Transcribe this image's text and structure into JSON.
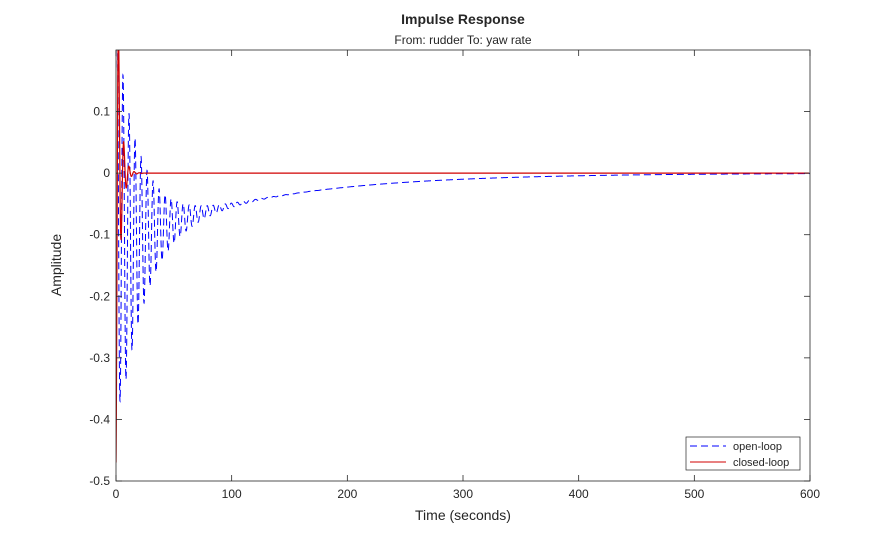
{
  "chart_data": {
    "type": "line",
    "title": "Impulse Response",
    "subtitle": "From: rudder  To: yaw rate",
    "xlabel": "Time (seconds)",
    "ylabel": "Amplitude",
    "xlim": [
      0,
      600
    ],
    "ylim": [
      -0.5,
      0.2
    ],
    "xticks": [
      0,
      100,
      200,
      300,
      400,
      500,
      600
    ],
    "xtick_labels": [
      "0",
      "100",
      "200",
      "300",
      "400",
      "500",
      "600"
    ],
    "yticks": [
      0.1,
      0,
      -0.1,
      -0.2,
      -0.3,
      -0.4,
      -0.5
    ],
    "ytick_labels": [
      "0.1",
      "0",
      "-0.1",
      "-0.2",
      "-0.3",
      "-0.4",
      "-0.5"
    ],
    "grid": false,
    "legend_location": "bottom-right",
    "series": [
      {
        "name": "open-loop",
        "color": "#0000ff",
        "style": "dashed",
        "model": "decaying oscillation plus slow negative drift",
        "params": {
          "osc_amp": 0.34,
          "osc_tau": 22,
          "osc_period": 5.2,
          "drift_amp": -0.12,
          "drift_tau": 120
        },
        "peaks": [
          {
            "t": 2,
            "y": 0.19
          },
          {
            "t": 4.6,
            "y": -0.38
          },
          {
            "t": 50,
            "y": -0.05
          },
          {
            "t": 200,
            "y": -0.021
          },
          {
            "t": 400,
            "y": -0.004
          },
          {
            "t": 600,
            "y": 0
          }
        ]
      },
      {
        "name": "closed-loop",
        "color": "#d00000",
        "style": "solid",
        "model": "fast damped oscillation",
        "params": {
          "start": -0.47,
          "osc_amp": 0.5,
          "osc_tau": 3,
          "osc_period": 4.5,
          "offset": 0
        },
        "peaks": [
          {
            "t": 0,
            "y": -0.47
          },
          {
            "t": 4,
            "y": 0.05
          },
          {
            "t": 7,
            "y": -0.06
          },
          {
            "t": 12,
            "y": 0.005
          },
          {
            "t": 600,
            "y": 0
          }
        ]
      }
    ]
  }
}
